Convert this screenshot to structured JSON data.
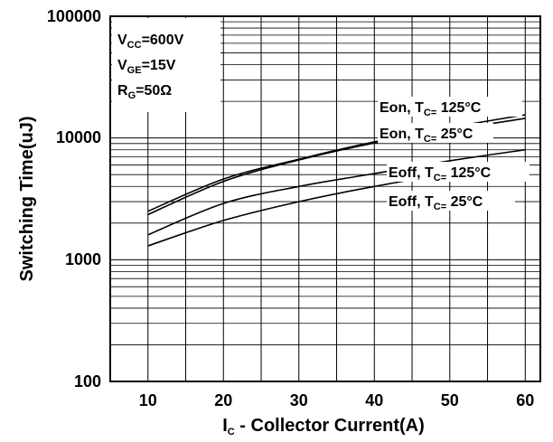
{
  "chart_data": {
    "type": "line",
    "x_axis": {
      "label_main": "I",
      "label_sub": "C",
      "label_rest": " - Collector Current(A)",
      "ticks": [
        10,
        20,
        30,
        40,
        50,
        60
      ],
      "tick_labels": [
        "10",
        "20",
        "30",
        "40",
        "50",
        "60"
      ],
      "range": [
        5,
        62
      ]
    },
    "y_axis": {
      "label": "Switching Time(uJ)",
      "scale": "log",
      "ticks": [
        100,
        1000,
        10000,
        100000
      ],
      "tick_labels": [
        "100",
        "1000",
        "10000",
        "100000"
      ],
      "range": [
        100,
        100000
      ]
    },
    "grid": true,
    "conditions": [
      {
        "main": "V",
        "sub": "CC",
        "rest": "=600V"
      },
      {
        "main": "V",
        "sub": "GE",
        "rest": "=15V"
      },
      {
        "main": "R",
        "sub": "G",
        "rest": "=50Ω"
      }
    ],
    "series": [
      {
        "name": "Eon, TC= 125°C",
        "label_a": "Eon, T",
        "label_sub": "C=",
        "label_b": " 125°C",
        "x": [
          10,
          20,
          30,
          40,
          50,
          60
        ],
        "y": [
          2500,
          4600,
          6700,
          9300,
          12200,
          15500
        ]
      },
      {
        "name": "Eon, TC= 25°C",
        "label_a": "Eon, T",
        "label_sub": "C=",
        "label_b": " 25°C",
        "x": [
          10,
          20,
          30,
          40,
          50,
          60
        ],
        "y": [
          2350,
          4400,
          6600,
          9100,
          11600,
          14500
        ]
      },
      {
        "name": "Eoff, TC= 125°C",
        "label_a": "Eoff, T",
        "label_sub": "C=",
        "label_b": " 125°C",
        "x": [
          10,
          20,
          30,
          40,
          50,
          60
        ],
        "y": [
          1600,
          2900,
          4000,
          5100,
          6500,
          8000
        ]
      },
      {
        "name": "Eoff, TC= 25°C",
        "label_a": "Eoff, T",
        "label_sub": "C=",
        "label_b": " 25°C",
        "x": [
          10,
          20,
          30,
          40,
          50,
          60
        ],
        "y": [
          1300,
          2100,
          3000,
          4000,
          5100,
          6200
        ]
      }
    ]
  }
}
